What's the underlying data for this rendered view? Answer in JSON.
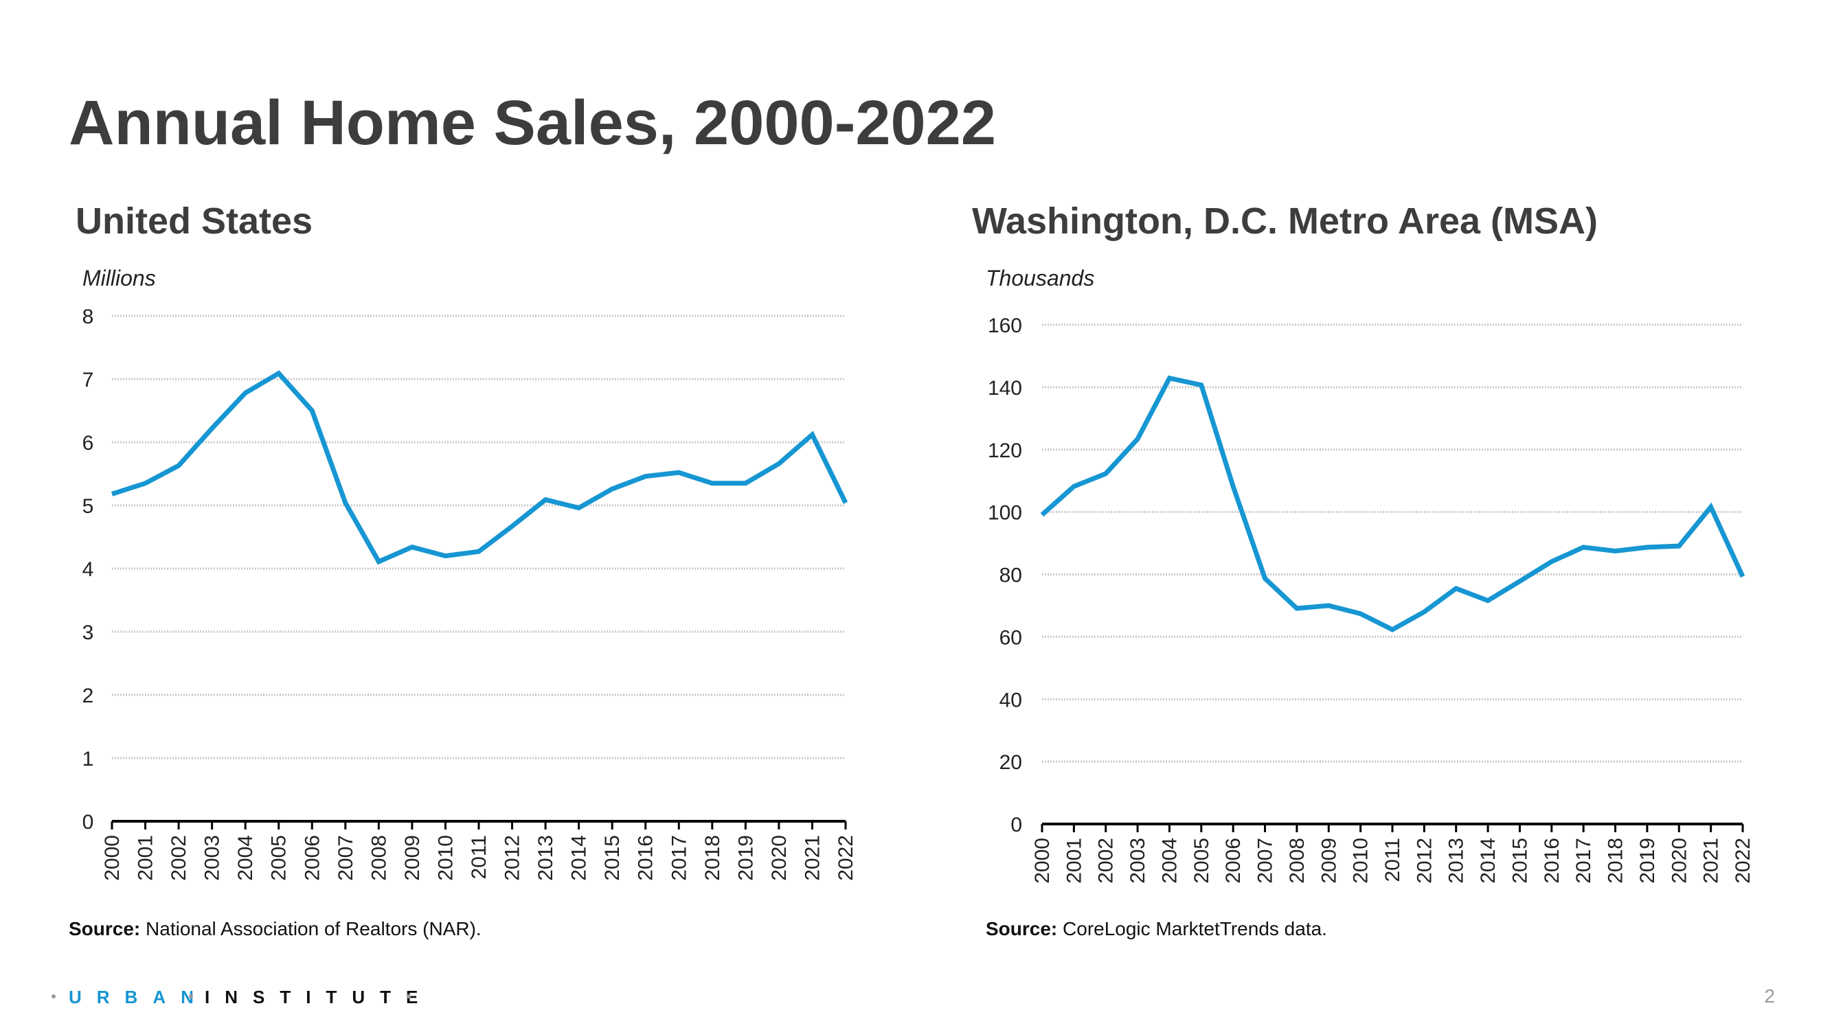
{
  "title": "Annual Home Sales, 2000-2022",
  "footer": {
    "logo_part1": "URBAN",
    "logo_part2": "INSTITUTE",
    "page_number": "2"
  },
  "colors": {
    "line": "#1696d2",
    "grid": "#c8c8c8",
    "text": "#3d3d3d",
    "logo_blue": "#1696d2"
  },
  "chart_data": [
    {
      "type": "line",
      "title": "United States",
      "ylabel": "Millions",
      "ylim": [
        0,
        8
      ],
      "yticks": [
        0,
        1,
        2,
        3,
        4,
        5,
        6,
        7,
        8
      ],
      "grid": true,
      "x": [
        "2000",
        "2001",
        "2002",
        "2003",
        "2004",
        "2005",
        "2006",
        "2007",
        "2008",
        "2009",
        "2010",
        "2011",
        "2012",
        "2013",
        "2014",
        "2015",
        "2016",
        "2017",
        "2018",
        "2019",
        "2020",
        "2021",
        "2022"
      ],
      "values": [
        5.18,
        5.35,
        5.63,
        6.22,
        6.78,
        7.09,
        6.5,
        5.04,
        4.11,
        4.34,
        4.2,
        4.27,
        4.67,
        5.09,
        4.96,
        5.26,
        5.46,
        5.52,
        5.35,
        5.35,
        5.66,
        6.12,
        5.04
      ],
      "source_label": "Source:",
      "source_text": " National Association of Realtors (NAR)."
    },
    {
      "type": "line",
      "title": "Washington, D.C. Metro Area (MSA)",
      "ylabel": "Thousands",
      "ylim": [
        0,
        160
      ],
      "yticks": [
        0,
        20,
        40,
        60,
        80,
        100,
        120,
        140,
        160
      ],
      "grid": true,
      "x": [
        "2000",
        "2001",
        "2002",
        "2003",
        "2004",
        "2005",
        "2006",
        "2007",
        "2008",
        "2009",
        "2010",
        "2011",
        "2012",
        "2013",
        "2014",
        "2015",
        "2016",
        "2017",
        "2018",
        "2019",
        "2020",
        "2021",
        "2022"
      ],
      "values": [
        99.1,
        108.2,
        112.3,
        123.4,
        142.9,
        140.7,
        108.2,
        78.7,
        69.1,
        70,
        67.4,
        62.3,
        68,
        75.5,
        71.6,
        77.8,
        84.1,
        88.7,
        87.5,
        88.7,
        89.1,
        101.6,
        79.3
      ],
      "source_label": "Source:",
      "source_text": " CoreLogic MarktetTrends data."
    }
  ]
}
